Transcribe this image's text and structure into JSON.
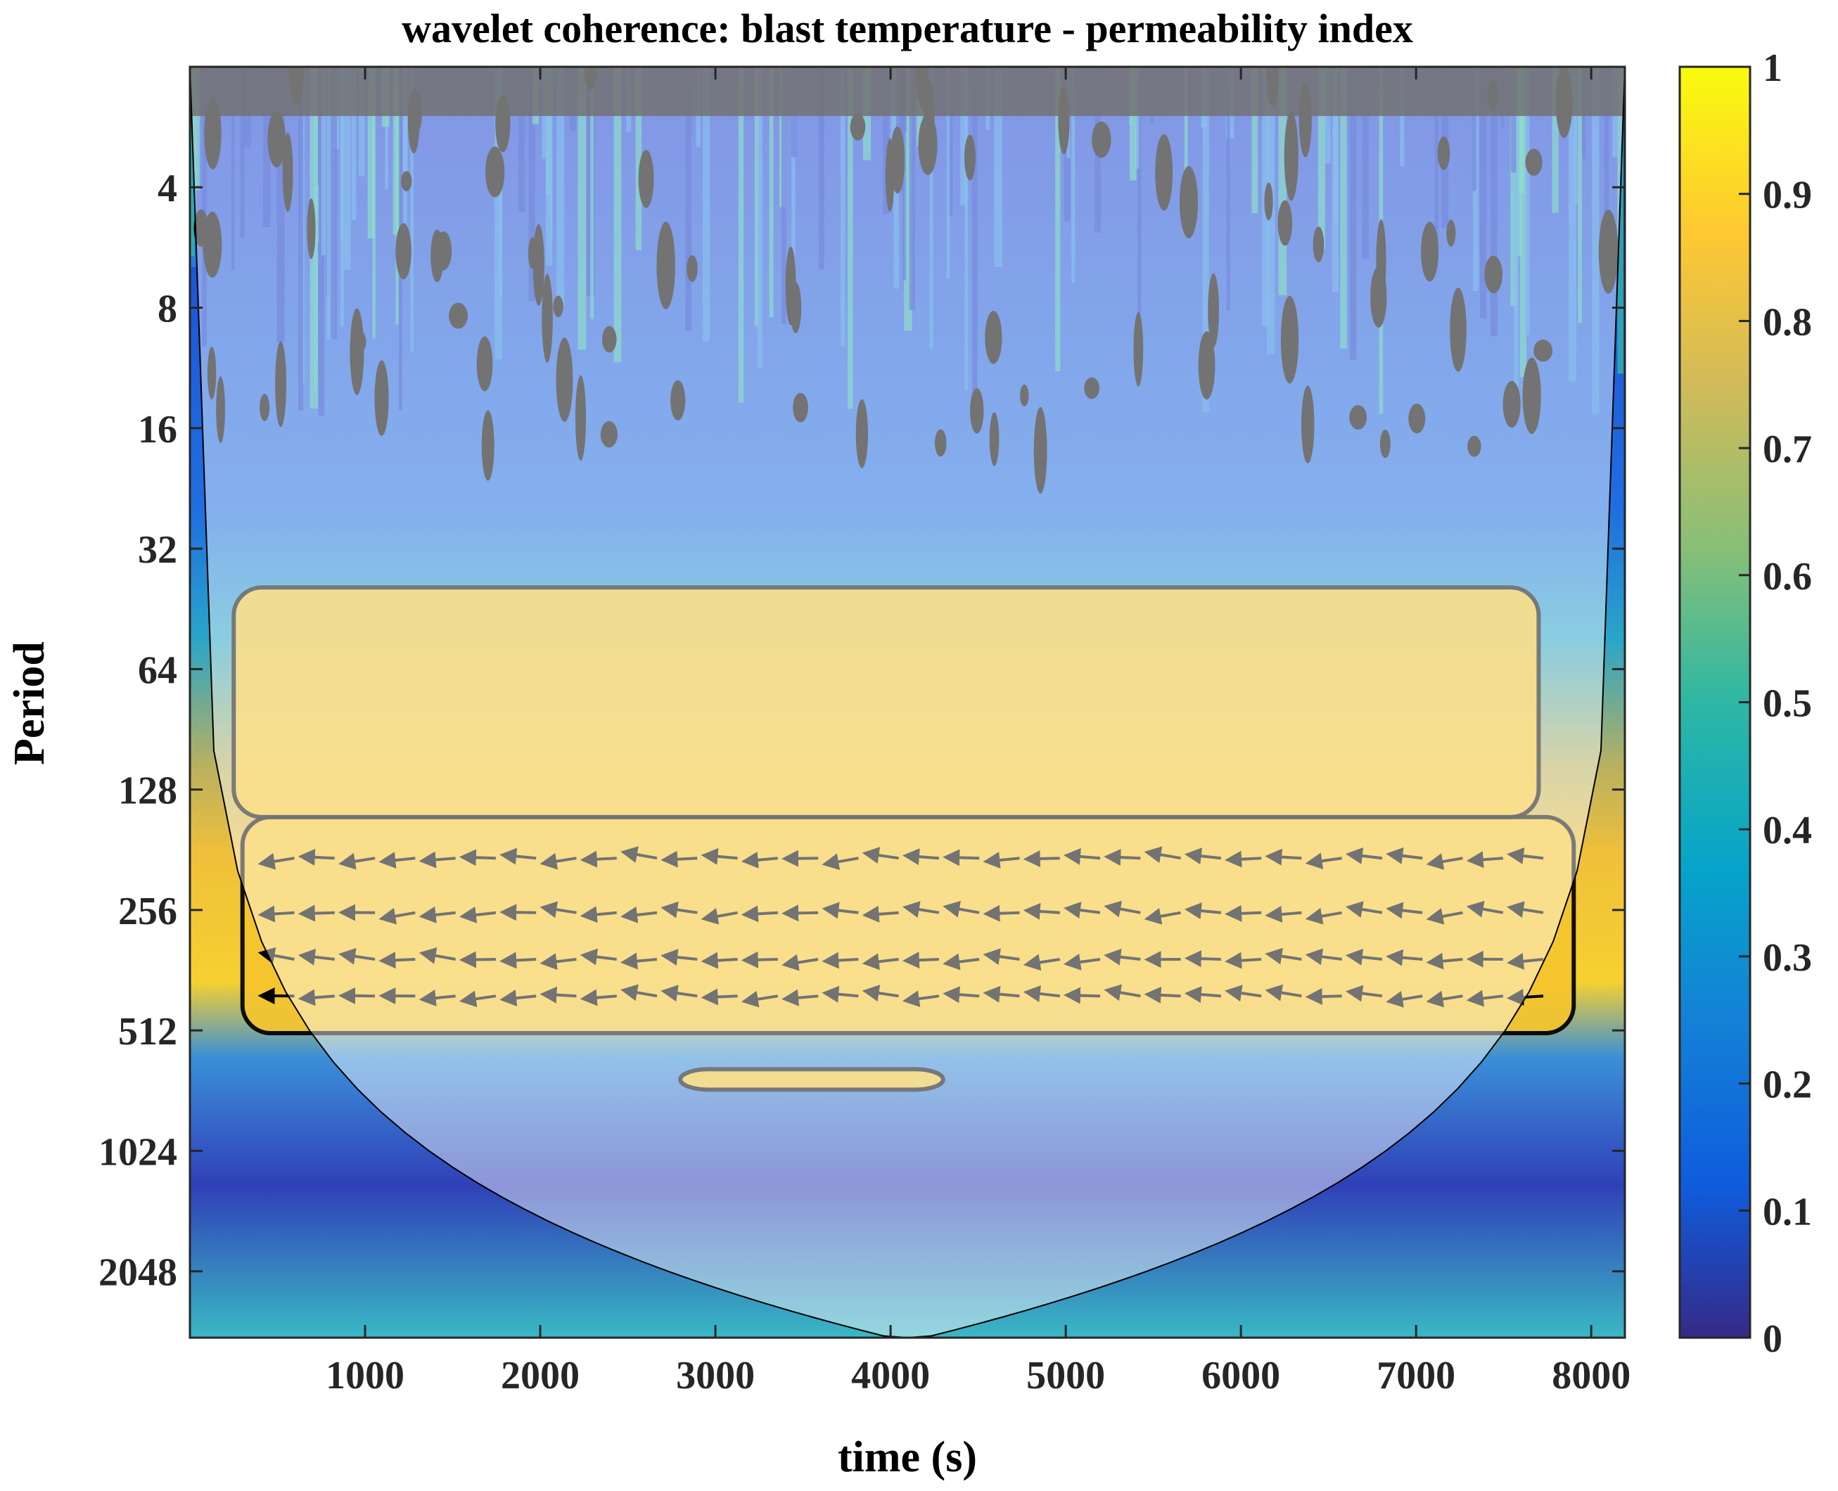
{
  "chart_data": {
    "type": "heatmap",
    "subtype": "wavelet coherence scalogram",
    "title": "wavelet coherence: blast temperature - permeability index",
    "xlabel": "time (s)",
    "ylabel": "Period",
    "xlim": [
      0,
      8192
    ],
    "ylim": [
      2,
      3000
    ],
    "y_scale": "log2",
    "y_reversed": true,
    "x_ticks": [
      1000,
      2000,
      3000,
      4000,
      5000,
      6000,
      7000,
      8000
    ],
    "y_ticks": [
      4,
      8,
      16,
      32,
      64,
      128,
      256,
      512,
      1024,
      2048
    ],
    "colorbar": {
      "min": 0,
      "max": 1,
      "ticks": [
        0,
        0.1,
        0.2,
        0.3,
        0.4,
        0.5,
        0.6,
        0.7,
        0.8,
        0.9,
        1
      ],
      "colormap": "parula",
      "colors": [
        "#352a87",
        "#0f5cdd",
        "#1481d6",
        "#06a4ca",
        "#2eb7a4",
        "#87bf77",
        "#d1bb59",
        "#fec832",
        "#f9fb0e"
      ]
    },
    "grid": false,
    "significant_regions": [
      {
        "name": "main band",
        "time_range": [
          300,
          7900
        ],
        "period_range": [
          150,
          520
        ],
        "coherence": 0.85
      },
      {
        "name": "upper fingers",
        "time_range": [
          250,
          7700
        ],
        "period_range": [
          40,
          150
        ],
        "coherence": 0.8
      },
      {
        "name": "deep patch",
        "time_range": [
          2800,
          4300
        ],
        "period_range": [
          640,
          720
        ],
        "coherence": 0.8
      }
    ],
    "phase_arrows": "mostly pointing left (anti-phase) in the 150–512 period band",
    "cone_of_influence": true
  }
}
